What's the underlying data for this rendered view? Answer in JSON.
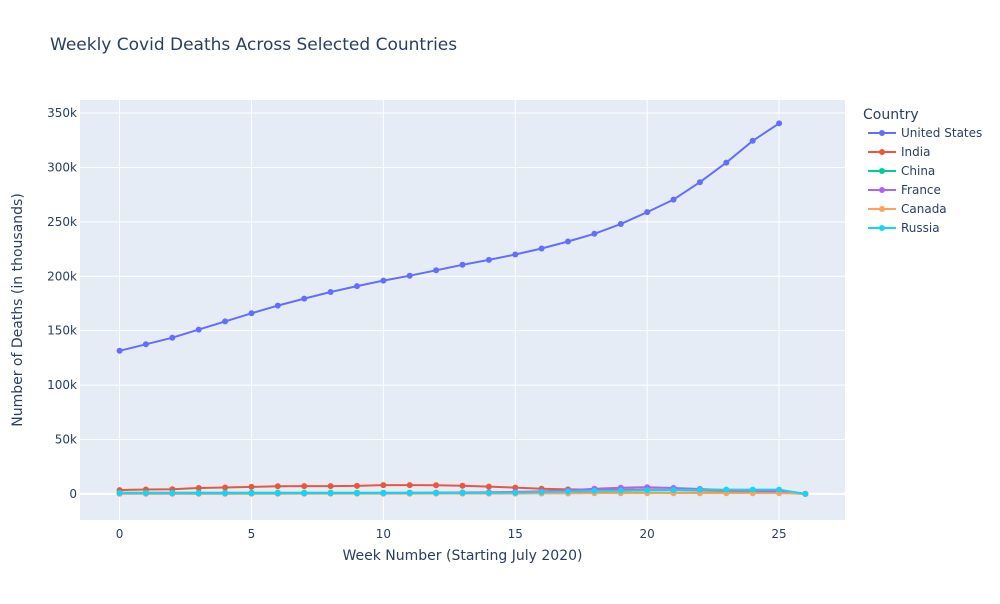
{
  "chart_data": {
    "type": "line",
    "title": "Weekly Covid Deaths Across Selected Countries",
    "xlabel": "Week Number (Starting July 2020)",
    "ylabel": "Number of Deaths (in thousands)",
    "xlim": [
      -1.5,
      27.5
    ],
    "ylim": [
      -24000,
      362000
    ],
    "x_ticks": [
      0,
      5,
      10,
      15,
      20,
      25
    ],
    "x_tick_labels": [
      "0",
      "5",
      "10",
      "15",
      "20",
      "25"
    ],
    "y_ticks": [
      0,
      50000,
      100000,
      150000,
      200000,
      250000,
      300000,
      350000
    ],
    "y_tick_labels": [
      "0",
      "50k",
      "100k",
      "150k",
      "200k",
      "250k",
      "300k",
      "350k"
    ],
    "grid": true,
    "legend": {
      "title": "Country",
      "placement": "right"
    },
    "x": [
      0,
      1,
      2,
      3,
      4,
      5,
      6,
      7,
      8,
      9,
      10,
      11,
      12,
      13,
      14,
      15,
      16,
      17,
      18,
      19,
      20,
      21,
      22,
      23,
      24,
      25,
      26
    ],
    "series": [
      {
        "name": "United States",
        "color": "#636efa",
        "values": [
          131500,
          137500,
          143500,
          151000,
          158500,
          166000,
          173000,
          179500,
          185500,
          191000,
          196000,
          200500,
          205500,
          210500,
          215000,
          220000,
          225500,
          232000,
          239000,
          248000,
          259000,
          270500,
          286500,
          304500,
          324500,
          340500,
          null
        ]
      },
      {
        "name": "India",
        "color": "#ef553b",
        "values": [
          3500,
          4000,
          4300,
          5400,
          5900,
          6400,
          7000,
          7200,
          7200,
          7300,
          8100,
          8100,
          7900,
          7400,
          6700,
          5800,
          4700,
          4100,
          3900,
          3800,
          3900,
          3600,
          3300,
          3000,
          2800,
          2700,
          0
        ]
      },
      {
        "name": "China",
        "color": "#00cc96",
        "values": [
          1000,
          1000,
          1000,
          1000,
          1000,
          1000,
          1000,
          1000,
          1000,
          1000,
          1000,
          1000,
          1000,
          1000,
          1000,
          1000,
          1000,
          1000,
          1000,
          1000,
          1000,
          1000,
          1000,
          1000,
          1000,
          1000,
          0
        ]
      },
      {
        "name": "France",
        "color": "#ab63fa",
        "values": [
          200,
          200,
          200,
          200,
          200,
          300,
          300,
          400,
          500,
          600,
          700,
          900,
          1100,
          1300,
          1500,
          1800,
          2300,
          3200,
          4800,
          5700,
          6100,
          5400,
          4500,
          3500,
          3100,
          2600,
          0
        ]
      },
      {
        "name": "Canada",
        "color": "#ffa15a",
        "values": [
          300,
          300,
          300,
          200,
          200,
          200,
          200,
          200,
          200,
          200,
          200,
          200,
          300,
          300,
          300,
          300,
          400,
          400,
          500,
          500,
          500,
          500,
          500,
          500,
          500,
          500,
          0
        ]
      },
      {
        "name": "Russia",
        "color": "#19d3f3",
        "values": [
          800,
          800,
          800,
          700,
          700,
          700,
          700,
          700,
          700,
          700,
          700,
          800,
          800,
          900,
          1000,
          1200,
          1700,
          2200,
          2700,
          3000,
          3300,
          3600,
          3800,
          3900,
          3900,
          3900,
          0
        ]
      }
    ]
  }
}
